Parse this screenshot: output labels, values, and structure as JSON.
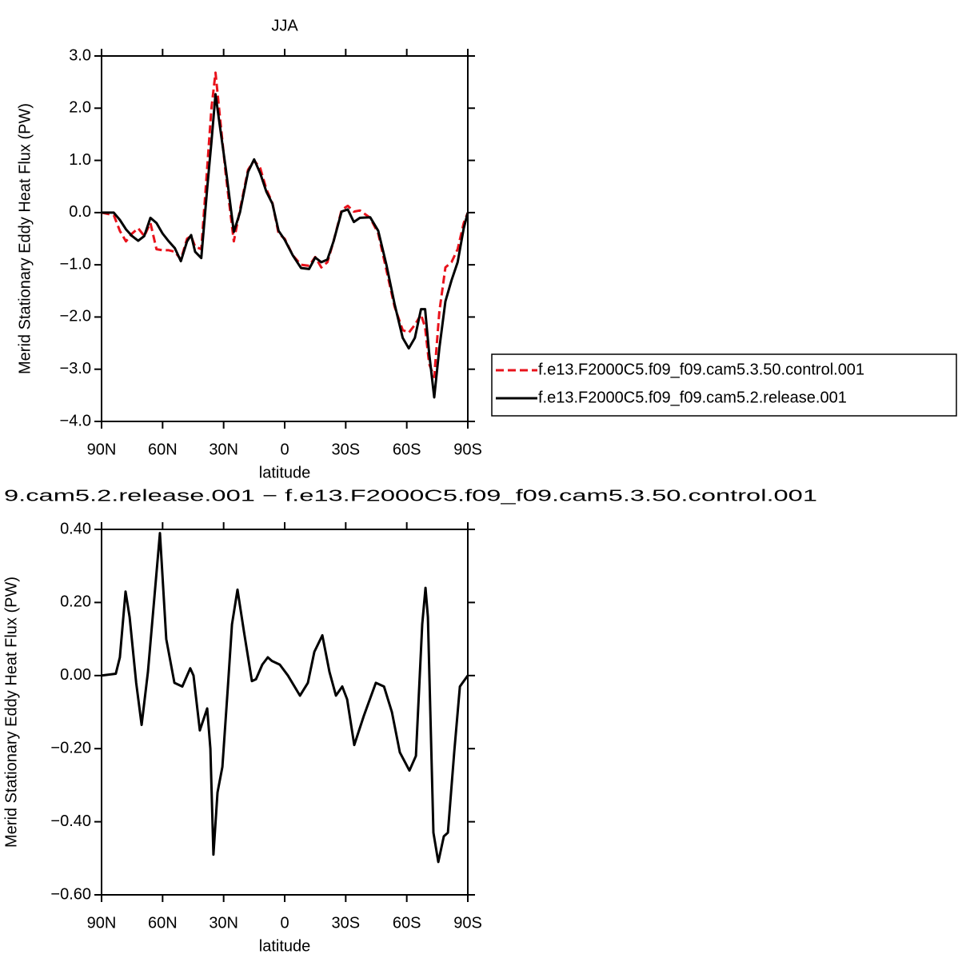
{
  "chart_data": [
    {
      "type": "line",
      "title": "JJA",
      "xlabel": "latitude",
      "ylabel": "Merid Stationary Eddy Heat Flux (PW)",
      "x": [
        90,
        84,
        81,
        78,
        75,
        72,
        69,
        66,
        63,
        60,
        57,
        54,
        51,
        48,
        46,
        44,
        41,
        38,
        36,
        34,
        32,
        29,
        25,
        22,
        18,
        15,
        12,
        9,
        6,
        3,
        0,
        -4,
        -8,
        -12,
        -15,
        -18,
        -21,
        -24,
        -28,
        -31,
        -34,
        -37,
        -42,
        -46,
        -50,
        -54,
        -58,
        -61,
        -64,
        -67,
        -69,
        -71,
        -73.5,
        -76,
        -79,
        -82,
        -85,
        -88,
        -90
      ],
      "xlim": [
        90,
        -90
      ],
      "xticks": [
        {
          "value": 90,
          "label": "90N"
        },
        {
          "value": 60,
          "label": "60N"
        },
        {
          "value": 30,
          "label": "30N"
        },
        0,
        {
          "value": -30,
          "label": "30S"
        },
        {
          "value": -60,
          "label": "60S"
        },
        {
          "value": -90,
          "label": "90S"
        }
      ],
      "ylim": [
        -4,
        3
      ],
      "yticks": [
        {
          "value": 3,
          "label": "3.0"
        },
        {
          "value": 2,
          "label": "2.0"
        },
        {
          "value": 1,
          "label": "1.0"
        },
        {
          "value": 0,
          "label": "0.0"
        },
        {
          "value": -1,
          "label": "−1.0"
        },
        {
          "value": -2,
          "label": "−2.0"
        },
        {
          "value": -3,
          "label": "−3.0"
        },
        {
          "value": -4,
          "label": "−4.0"
        }
      ],
      "legend": "outside-right",
      "series": [
        {
          "name": "f.e13.F2000C5.f09_f09.cam5.3.50.control.001",
          "color": "#e8121b",
          "linestyle": "dashed",
          "values": [
            0,
            -0.05,
            -0.35,
            -0.55,
            -0.4,
            -0.3,
            -0.45,
            -0.2,
            -0.7,
            -0.72,
            -0.72,
            -0.75,
            -0.9,
            -0.5,
            -0.45,
            -0.65,
            -0.7,
            0.9,
            2.0,
            2.68,
            1.9,
            0.75,
            -0.55,
            0.05,
            0.82,
            1.0,
            0.85,
            0.45,
            0.18,
            -0.4,
            -0.5,
            -0.82,
            -1.0,
            -1.02,
            -0.85,
            -1.05,
            -0.95,
            -0.55,
            0.05,
            0.13,
            0.02,
            0.04,
            -0.1,
            -0.4,
            -1.1,
            -1.8,
            -2.25,
            -2.3,
            -2.15,
            -1.95,
            -2.2,
            -2.9,
            -3.15,
            -1.9,
            -1.05,
            -0.95,
            -0.7,
            -0.2,
            0
          ]
        },
        {
          "name": "f.e13.F2000C5.f09_f09.cam5.2.release.001",
          "color": "#000000",
          "linestyle": "solid",
          "values": [
            0,
            0,
            -0.14,
            -0.32,
            -0.45,
            -0.54,
            -0.45,
            -0.1,
            -0.2,
            -0.4,
            -0.55,
            -0.68,
            -0.93,
            -0.55,
            -0.43,
            -0.75,
            -0.87,
            0.5,
            1.35,
            2.27,
            1.7,
            0.86,
            -0.37,
            0,
            0.78,
            1.02,
            0.75,
            0.4,
            0.17,
            -0.35,
            -0.52,
            -0.82,
            -1.06,
            -1.08,
            -0.86,
            -0.95,
            -0.9,
            -0.55,
            0.02,
            0.06,
            -0.18,
            -0.1,
            -0.09,
            -0.35,
            -1.0,
            -1.75,
            -2.4,
            -2.6,
            -2.4,
            -1.85,
            -1.85,
            -2.7,
            -3.54,
            -2.6,
            -1.7,
            -1.3,
            -0.95,
            -0.3,
            0
          ]
        }
      ]
    },
    {
      "type": "line",
      "title": "9.cam5.2.release.001 − f.e13.F2000C5.f09_f09.cam5.3.50.control.001",
      "xlabel": "latitude",
      "ylabel": "Merid Stationary Eddy Heat Flux (PW)",
      "x": [
        90,
        83,
        81,
        78.2,
        76.2,
        73,
        70.3,
        67.2,
        61.3,
        58.2,
        54.2,
        50.3,
        46.4,
        44.8,
        41.7,
        39.3,
        38.1,
        36.5,
        35,
        33,
        30.6,
        27.9,
        25.9,
        23.2,
        20,
        16.1,
        14.1,
        11,
        8.3,
        6.3,
        2.4,
        -1.6,
        -7.5,
        -11.4,
        -14.6,
        -18.5,
        -22,
        -25.2,
        -28.3,
        -30.7,
        -34.2,
        -38.9,
        -44.8,
        -48.8,
        -52.7,
        -56.6,
        -61.3,
        -64.5,
        -67.6,
        -69.2,
        -70.4,
        -73.1,
        -75.5,
        -78.2,
        -80.2,
        -83.3,
        -86.1,
        -90
      ],
      "values": [
        0,
        0.005,
        0.05,
        0.23,
        0.16,
        -0.02,
        -0.135,
        0.01,
        0.39,
        0.1,
        -0.02,
        -0.03,
        0.02,
        0,
        -0.15,
        -0.11,
        -0.09,
        -0.2,
        -0.49,
        -0.32,
        -0.25,
        -0.03,
        0.14,
        0.235,
        0.12,
        -0.015,
        -0.01,
        0.03,
        0.05,
        0.04,
        0.03,
        0,
        -0.055,
        -0.02,
        0.065,
        0.11,
        0.01,
        -0.055,
        -0.03,
        -0.065,
        -0.19,
        -0.11,
        -0.02,
        -0.03,
        -0.1,
        -0.21,
        -0.26,
        -0.22,
        0.14,
        0.24,
        0.16,
        -0.43,
        -0.51,
        -0.44,
        -0.43,
        -0.21,
        -0.03,
        0
      ],
      "color": "#000000",
      "xlim": [
        90,
        -90
      ],
      "xticks": [
        {
          "value": 90,
          "label": "90N"
        },
        {
          "value": 60,
          "label": "60N"
        },
        {
          "value": 30,
          "label": "30N"
        },
        0,
        {
          "value": -30,
          "label": "30S"
        },
        {
          "value": -60,
          "label": "60S"
        },
        {
          "value": -90,
          "label": "90S"
        }
      ],
      "ylim": [
        -0.6,
        0.4
      ],
      "yticks": [
        {
          "value": 0.4,
          "label": "0.40"
        },
        {
          "value": 0.2,
          "label": "0.20"
        },
        {
          "value": 0,
          "label": "0.00"
        },
        {
          "value": -0.2,
          "label": "−0.20"
        },
        {
          "value": -0.4,
          "label": "−0.40"
        },
        {
          "value": -0.6,
          "label": "−0.60"
        }
      ]
    }
  ]
}
